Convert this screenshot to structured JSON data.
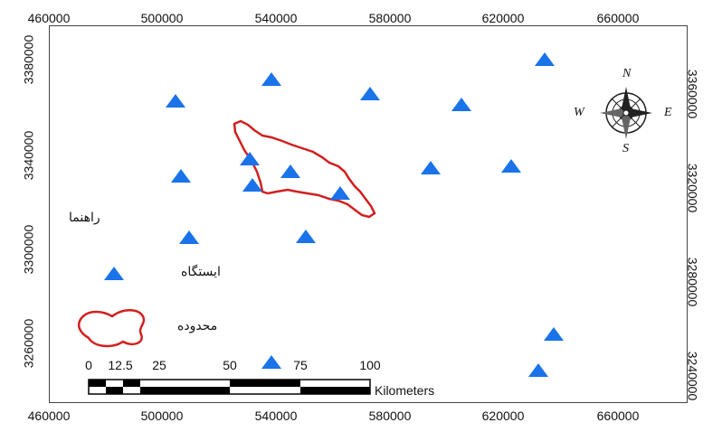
{
  "map": {
    "x_ticks": [
      "460000",
      "500000",
      "540000",
      "580000",
      "620000",
      "660000"
    ],
    "y_ticks_left": [
      "3380000",
      "3340000",
      "3300000",
      "3260000"
    ],
    "y_ticks_right": [
      "3360000",
      "3320000",
      "3280000",
      "3240000"
    ],
    "colors": {
      "station": "#1a73e8",
      "boundary": "#d21f1f",
      "frame": "#444444"
    }
  },
  "legend": {
    "title": "راهنما",
    "station_label": "ایستگاه",
    "boundary_label": "محدوده"
  },
  "scale_bar": {
    "numbers": [
      "0",
      "12.5",
      "25",
      "50",
      "75",
      "100"
    ],
    "unit": "Kilometers"
  },
  "north_arrow": {
    "n": "N",
    "s": "S",
    "e": "E",
    "w": "W"
  }
}
